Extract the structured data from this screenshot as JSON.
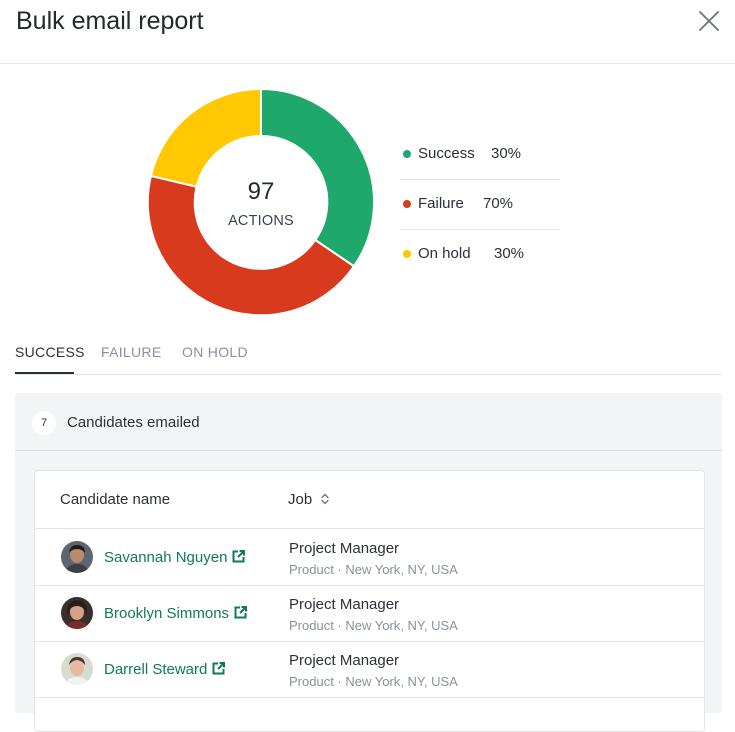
{
  "header": {
    "title": "Bulk email report"
  },
  "summary": {
    "total": "97",
    "total_label": "ACTIONS",
    "colors": {
      "success": "#1ea86b",
      "failure": "#d83a1e",
      "on_hold": "#ffc800"
    },
    "legend": [
      {
        "label": "Success",
        "value": "30%"
      },
      {
        "label": "Failure",
        "value": "70%"
      },
      {
        "label": "On hold",
        "value": "30%"
      }
    ]
  },
  "tabs": [
    "SUCCESS",
    "FAILURE",
    "ON HOLD"
  ],
  "panel": {
    "count": "7",
    "title": "Candidates emailed"
  },
  "table": {
    "columns": {
      "name": "Candidate name",
      "job": "Job"
    },
    "rows": [
      {
        "name": "Savannah Nguyen",
        "job": "Project Manager",
        "detail": "Product · New York, NY, USA"
      },
      {
        "name": "Brooklyn Simmons",
        "job": "Project Manager",
        "detail": "Product · New York, NY, USA"
      },
      {
        "name": "Darrell Steward",
        "job": "Project Manager",
        "detail": "Product · New York, NY, USA"
      }
    ]
  },
  "icons": {
    "close": "close-icon",
    "sort": "sort-icon",
    "external_link": "external-link-icon"
  }
}
